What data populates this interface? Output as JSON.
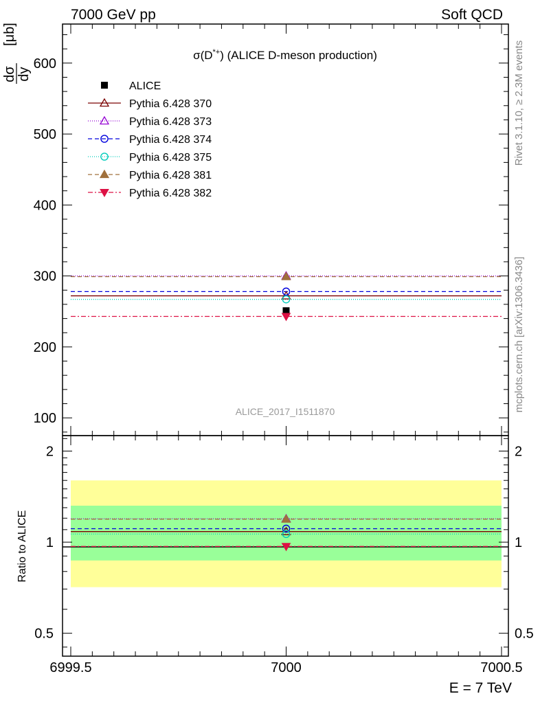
{
  "header": {
    "left": "7000 GeV pp",
    "right": "Soft QCD"
  },
  "side_labels": {
    "rivet": "Rivet 3.1.10, ≥ 2.3M events",
    "mcplots": "mcplots.cern.ch [arXiv:1306.3436]"
  },
  "chart_data": [
    {
      "type": "scatter",
      "title": "σ(D*+) (ALICE D-meson production)",
      "ylabel": "dσ/dy [μb]",
      "watermark": "ALICE_2017_I1511870",
      "xlim": [
        6999.5,
        7000.5
      ],
      "ylim": [
        75,
        655
      ],
      "yticks": [
        100,
        200,
        300,
        400,
        500,
        600
      ],
      "legend_position": "top-left",
      "data": {
        "name": "ALICE",
        "x": 7000,
        "y": 251
      },
      "series": [
        {
          "name": "Pythia 6.428 370",
          "y": 272,
          "color": "#7a0000",
          "dash": "",
          "marker": "triangle-open"
        },
        {
          "name": "Pythia 6.428 373",
          "y": 300,
          "color": "#9400d3",
          "dash": "1,2",
          "marker": "triangle-open"
        },
        {
          "name": "Pythia 6.428 374",
          "y": 278,
          "color": "#0000dd",
          "dash": "6,4",
          "marker": "circle-open"
        },
        {
          "name": "Pythia 6.428 375",
          "y": 267,
          "color": "#00ccbb",
          "dash": "1,2",
          "marker": "circle-open"
        },
        {
          "name": "Pythia 6.428 381",
          "y": 299,
          "color": "#a0703c",
          "dash": "6,4",
          "marker": "triangle-filled"
        },
        {
          "name": "Pythia 6.428 382",
          "y": 243,
          "color": "#dd1144",
          "dash": "7,3,2,3",
          "marker": "triangle-down-filled"
        }
      ]
    },
    {
      "type": "scatter",
      "ylabel": "Ratio to ALICE",
      "xlabel": "E = 7 TeV",
      "x_ticklabels": [
        "6999.5",
        "7000",
        "7000.5"
      ],
      "ylim": [
        0.42,
        2.25
      ],
      "yscale": "log",
      "yticks": [
        0.5,
        1,
        2
      ],
      "ytick_labels": [
        "0.5",
        "1",
        "2"
      ],
      "bands": [
        {
          "name": "total uncertainty",
          "low": 0.71,
          "high": 1.6,
          "color": "#ffff99"
        },
        {
          "name": "statistical uncertainty",
          "low": 0.87,
          "high": 1.32,
          "color": "#99ff99"
        }
      ],
      "series": [
        {
          "name": "Pythia 6.428 370",
          "y": 1.084
        },
        {
          "name": "Pythia 6.428 373",
          "y": 1.195
        },
        {
          "name": "Pythia 6.428 374",
          "y": 1.108
        },
        {
          "name": "Pythia 6.428 375",
          "y": 1.064
        },
        {
          "name": "Pythia 6.428 381",
          "y": 1.191
        },
        {
          "name": "Pythia 6.428 382",
          "y": 0.968
        }
      ]
    }
  ]
}
